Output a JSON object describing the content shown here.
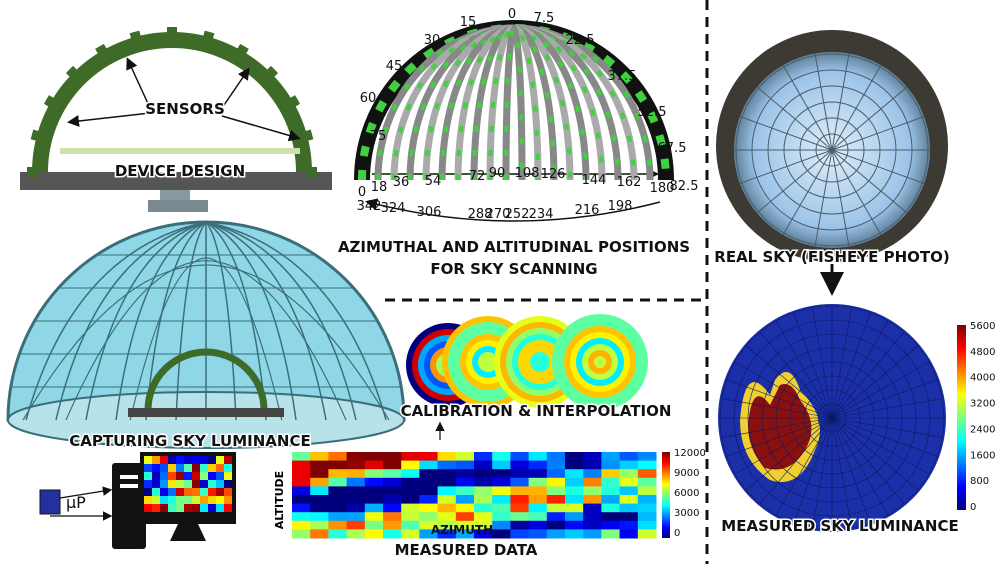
{
  "device": {
    "sensors_label": "SENSORS",
    "title": "DEVICE DESIGN"
  },
  "scanning": {
    "altitude_labels": [
      "75",
      "60",
      "45",
      "30",
      "15",
      "0",
      "7.5",
      "22.5",
      "37.5",
      "52.5",
      "67.5",
      "82.5"
    ],
    "azimuth_labels_front": [
      "0",
      "18",
      "36",
      "54",
      "72",
      "90",
      "108",
      "126",
      "144",
      "162",
      "180"
    ],
    "azimuth_labels_back": [
      "342",
      "324",
      "306",
      "288",
      "270",
      "252",
      "234",
      "216",
      "198"
    ],
    "title_lines": [
      "AZIMUTHAL AND ALTITUDINAL POSITIONS",
      "FOR SKY SCANNING"
    ]
  },
  "fisheye": {
    "title": "REAL SKY (FISHEYE PHOTO)"
  },
  "capture": {
    "title": "CAPTURING SKY LUMINANCE",
    "processor": "μP"
  },
  "calibration": {
    "title": "CALIBRATION & INTERPOLATION"
  },
  "measured_data": {
    "y_label": "ALTITUDE",
    "x_label": "AZIMUTH",
    "title": "MEASURED DATA",
    "colorbar_ticks": [
      "12000",
      "9000",
      "6000",
      "3000",
      "0"
    ]
  },
  "luminance": {
    "title": "MEASURED SKY LUMINANCE",
    "colorbar_ticks": [
      "5600",
      "4800",
      "4000",
      "3200",
      "2400",
      "1600",
      "800",
      "0"
    ]
  }
}
